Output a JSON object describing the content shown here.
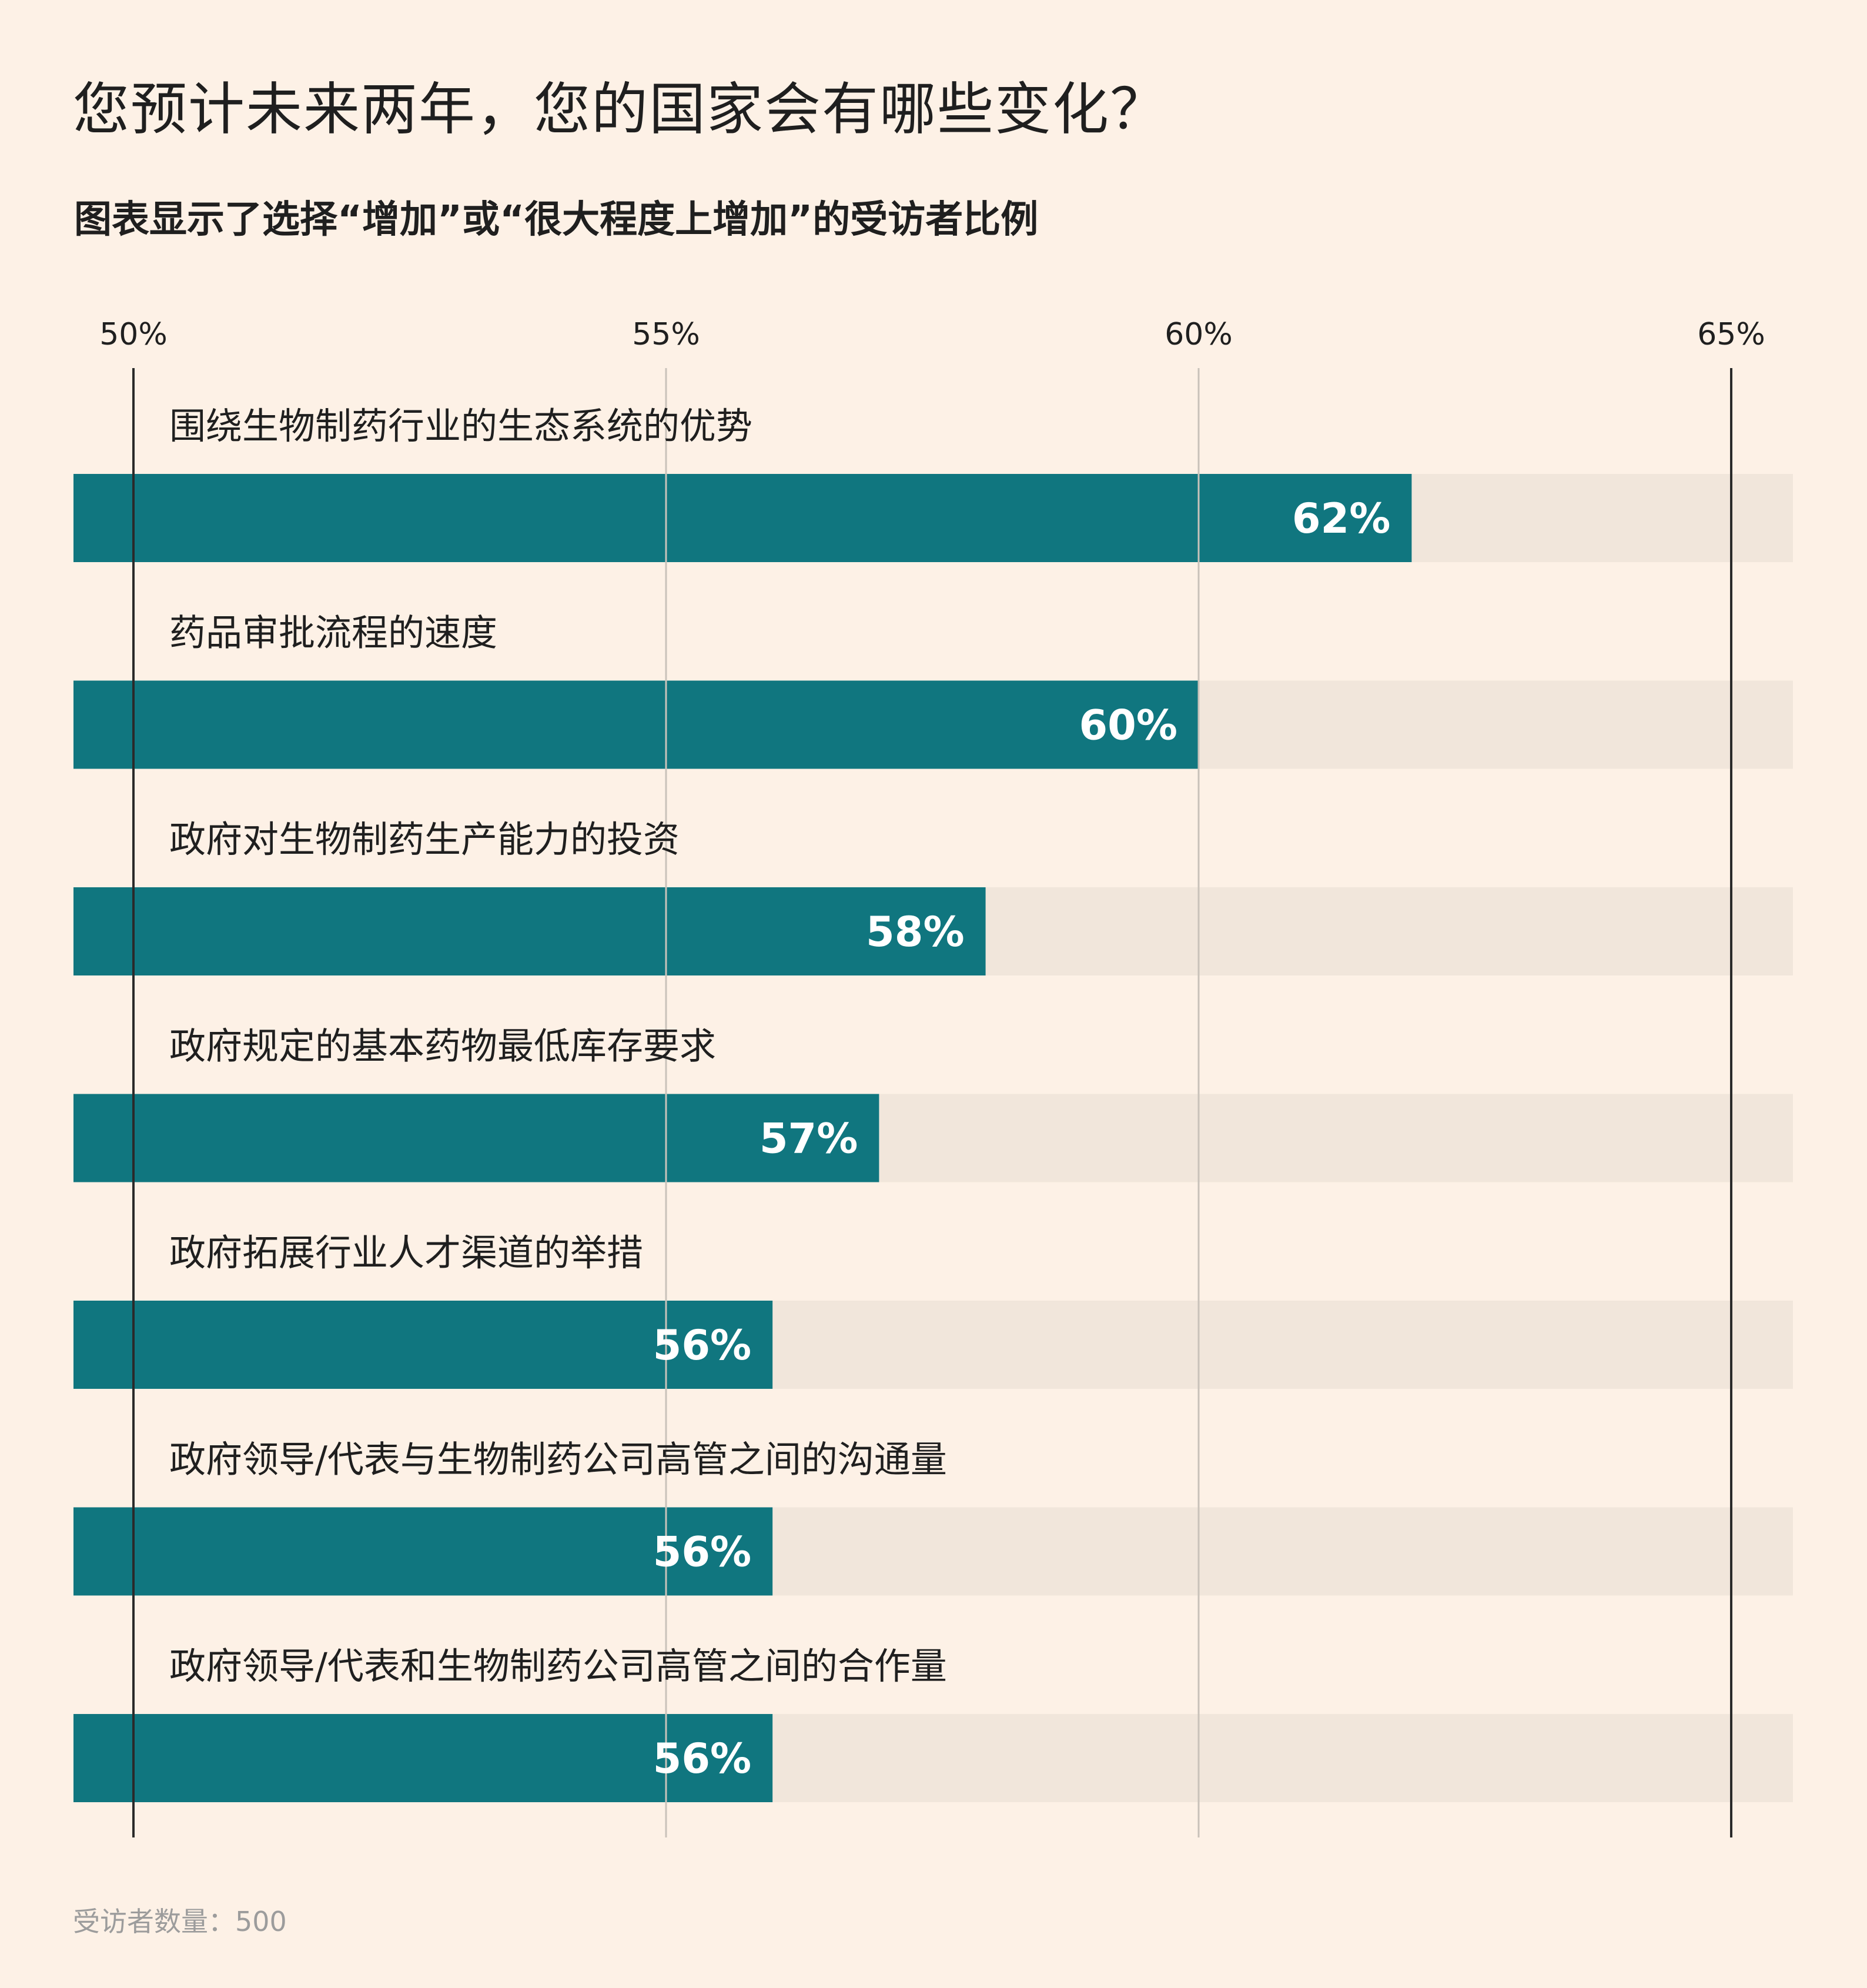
{
  "title": "您预计未来两年，您的国家会有哪些变化？",
  "subtitle": "图表显示了选择“增加”或“很大程度上增加”的受访者比例",
  "footer": "受访者数量：500",
  "colors": {
    "background": "#fdf1e6",
    "bar": "#10767f",
    "track": "#f1e6db",
    "gridline_major": "#2a2a2a",
    "gridline_minor": "#c9c2ba",
    "value_label": "#ffffff"
  },
  "chart_data": {
    "type": "bar",
    "orientation": "horizontal",
    "title": "您预计未来两年，您的国家会有哪些变化？",
    "subtitle": "图表显示了选择“增加”或“很大程度上增加”的受访者比例",
    "xlim": [
      50,
      65
    ],
    "x_ticks": [
      50,
      55,
      60,
      65
    ],
    "x_tick_labels": [
      "50%",
      "55%",
      "60%",
      "65%"
    ],
    "x_axis_position": "top",
    "grid": true,
    "categories": [
      "围绕生物制药行业的生态系统的优势",
      "药品审批流程的速度",
      "政府对生物制药生产能力的投资",
      "政府规定的基本药物最低库存要求",
      "政府拓展行业人才渠道的举措",
      "政府领导/代表与生物制药公司高管之间的沟通量",
      "政府领导/代表和生物制药公司高管之间的合作量"
    ],
    "values": [
      62,
      60,
      58,
      57,
      56,
      56,
      56
    ],
    "value_labels": [
      "62%",
      "60%",
      "58%",
      "57%",
      "56%",
      "56%",
      "56%"
    ]
  }
}
